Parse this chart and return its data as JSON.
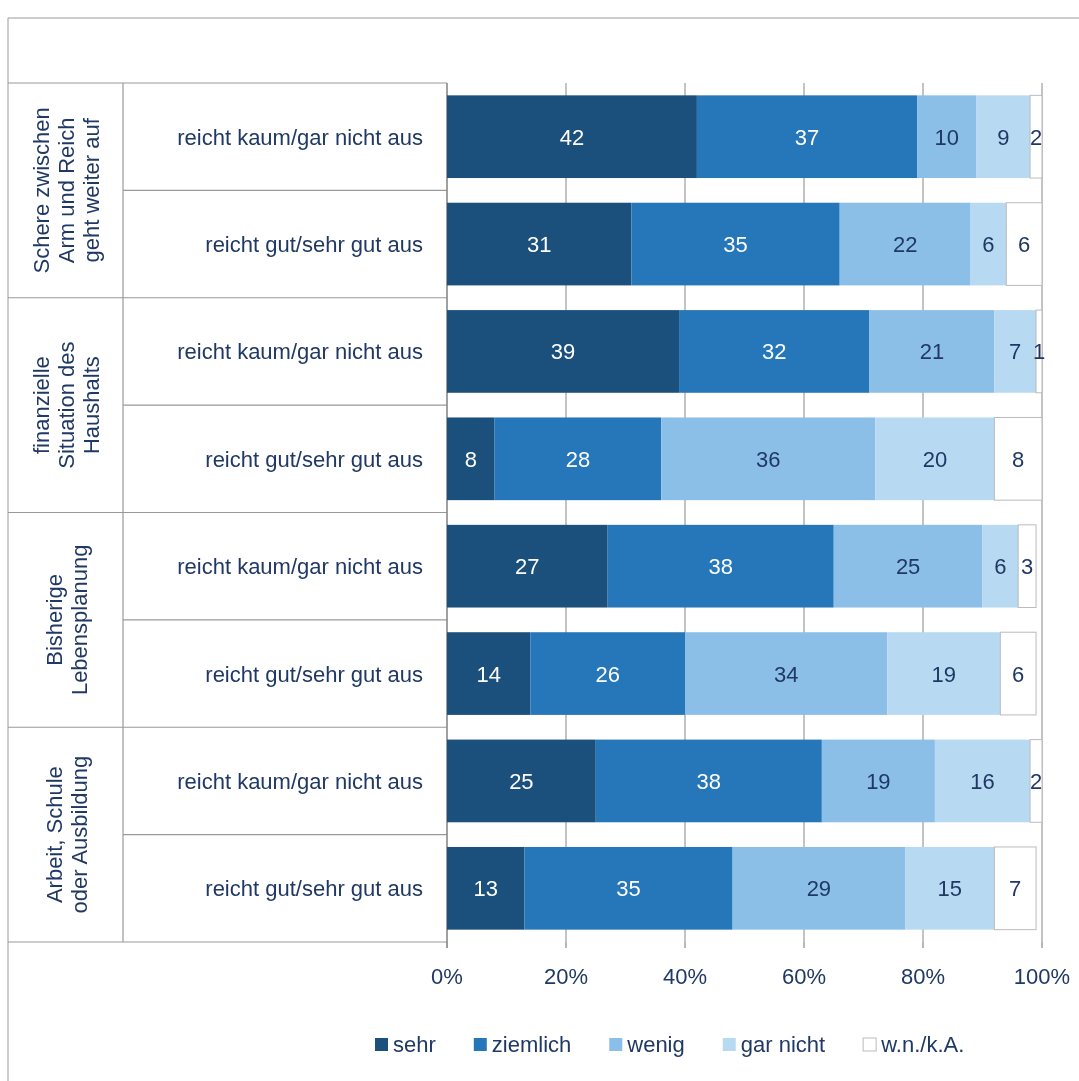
{
  "chart_data": {
    "type": "bar",
    "orientation": "horizontal",
    "stacked": true,
    "data_labels": true,
    "grid": "x",
    "legend": "bottom",
    "categories": [
      "reicht kaum/gar nicht aus",
      "reicht gut/sehr gut aus",
      "reicht kaum/gar nicht aus",
      "reicht gut/sehr gut aus",
      "reicht kaum/gar nicht aus",
      "reicht gut/sehr gut aus",
      "reicht kaum/gar nicht aus",
      "reicht gut/sehr gut aus"
    ],
    "series": [
      {
        "name": "sehr",
        "color": "#1b4f7c",
        "values": [
          42,
          31,
          39,
          8,
          27,
          14,
          25,
          13
        ]
      },
      {
        "name": "ziemlich",
        "color": "#2677b9",
        "values": [
          37,
          35,
          32,
          28,
          38,
          26,
          38,
          35
        ]
      },
      {
        "name": "wenig",
        "color": "#8cbfe7",
        "values": [
          10,
          22,
          21,
          36,
          25,
          34,
          19,
          29
        ]
      },
      {
        "name": "gar nicht",
        "color": "#b8d9f2",
        "values": [
          9,
          6,
          7,
          20,
          6,
          19,
          16,
          15
        ]
      },
      {
        "name": "w.n./k.A.",
        "color": "#ffffff",
        "values": [
          2,
          6,
          1,
          8,
          3,
          6,
          2,
          7
        ]
      }
    ],
    "xlim": [
      0,
      100
    ],
    "xticks": [
      {
        "value": 0,
        "label": "0%"
      },
      {
        "value": 20,
        "label": "20%"
      },
      {
        "value": 40,
        "label": "40%"
      },
      {
        "value": 60,
        "label": "60%"
      },
      {
        "value": 80,
        "label": "80%"
      },
      {
        "value": 100,
        "label": "100%"
      }
    ],
    "annotations": [
      "Schere zwischen Arm und Reich geht weiter auf",
      "finanzielle Situation des Haushalts",
      "Bisherige Lebensplanung",
      "Arbeit, Schule oder Ausbildung"
    ]
  }
}
